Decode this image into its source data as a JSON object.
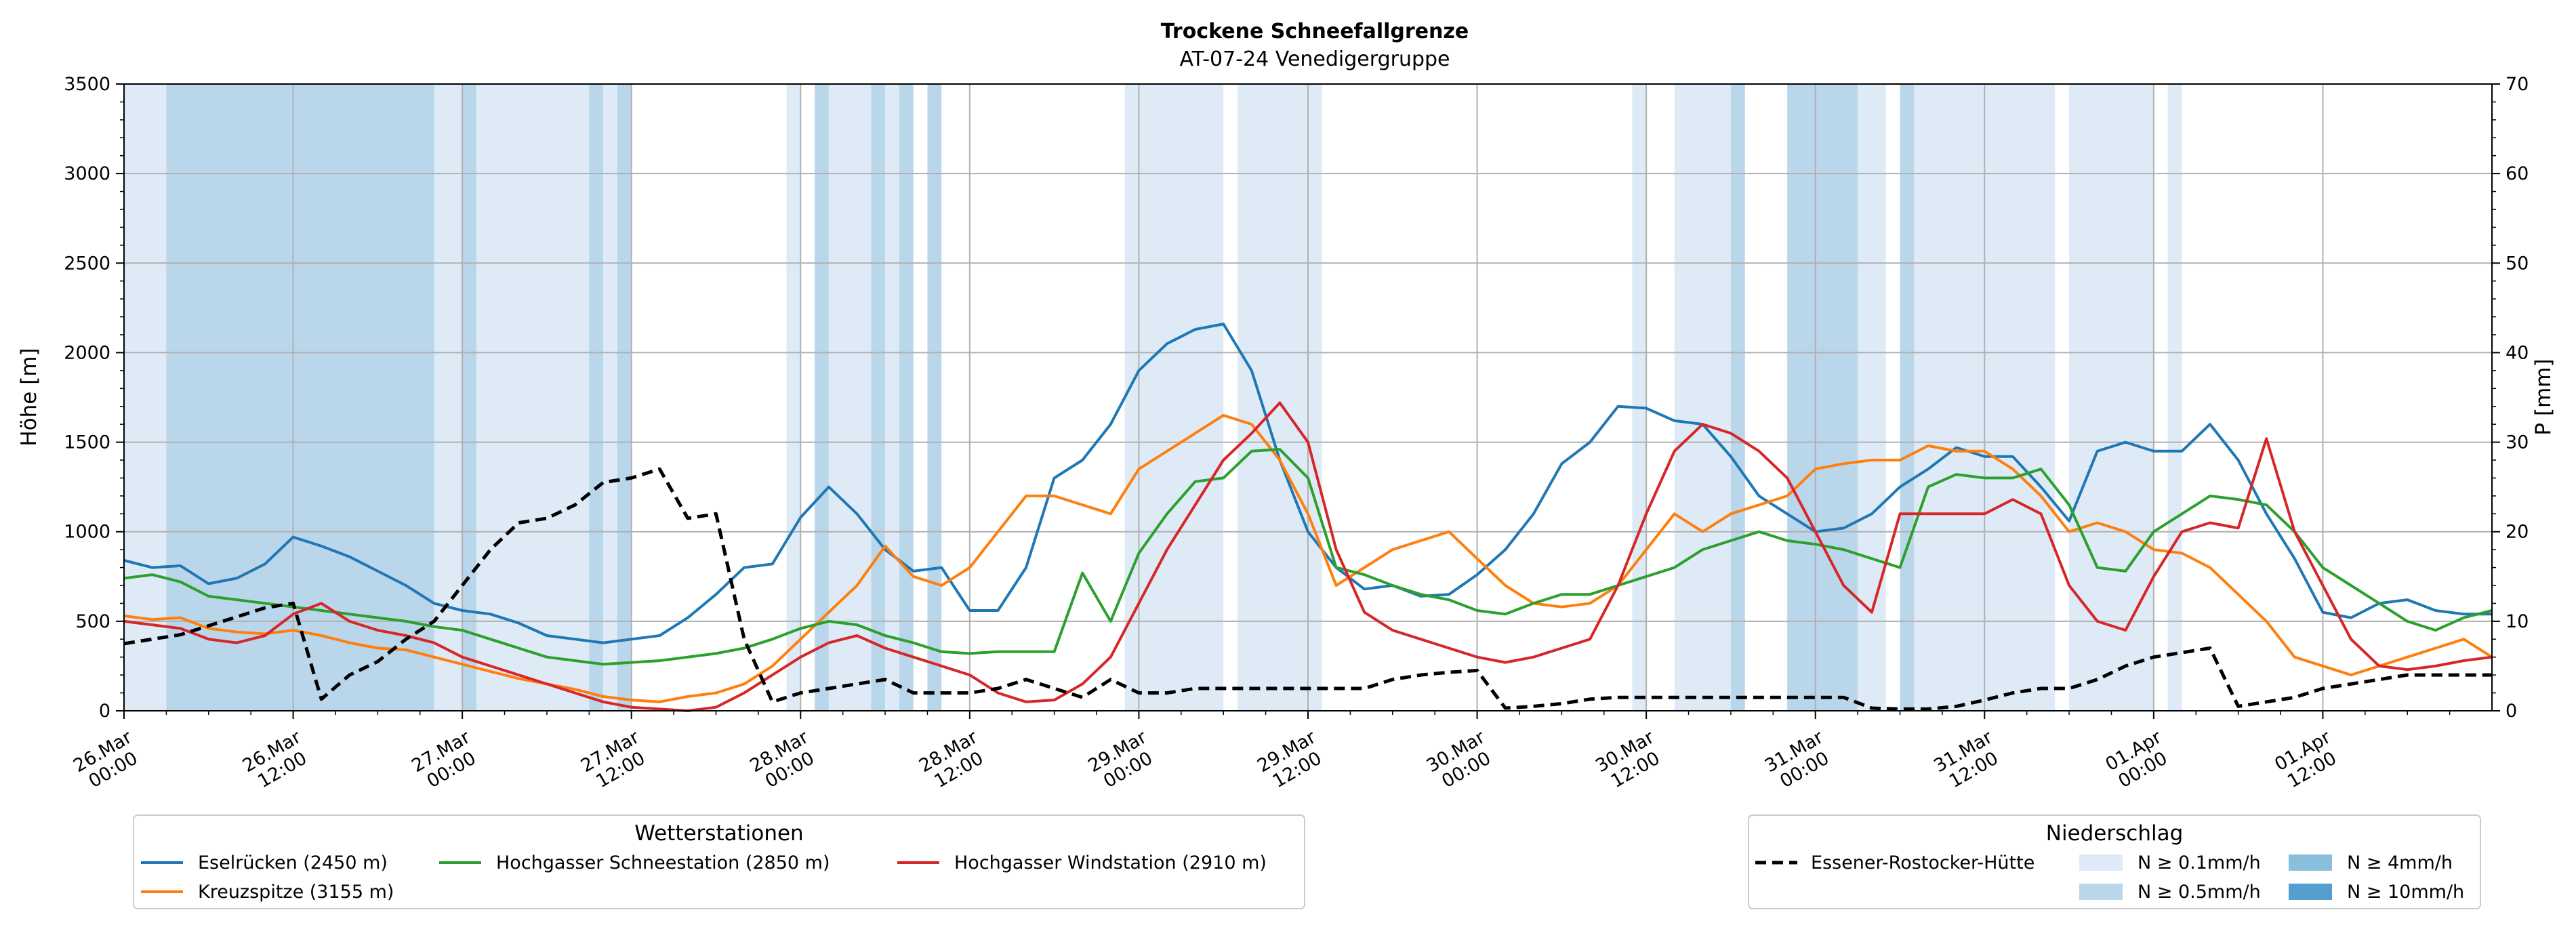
{
  "chart_data": {
    "type": "line",
    "title": "Trockene Schneefallgrenze",
    "subtitle": "AT-07-24 Venedigergruppe",
    "ylabel": "Höhe [m]",
    "ylabel_right": "P [mm]",
    "ylim": [
      0,
      3500
    ],
    "ylim_right": [
      0,
      70
    ],
    "yticks": [
      "0",
      "500",
      "1000",
      "1500",
      "2000",
      "2500",
      "3000",
      "3500"
    ],
    "yticks_right": [
      "0",
      "10",
      "20",
      "30",
      "40",
      "50",
      "60",
      "70"
    ],
    "x_range_hours": [
      0,
      168
    ],
    "xticks": [
      [
        "26.Mar",
        "00:00"
      ],
      [
        "26.Mar",
        "12:00"
      ],
      [
        "27.Mar",
        "00:00"
      ],
      [
        "27.Mar",
        "12:00"
      ],
      [
        "28.Mar",
        "00:00"
      ],
      [
        "28.Mar",
        "12:00"
      ],
      [
        "29.Mar",
        "00:00"
      ],
      [
        "29.Mar",
        "12:00"
      ],
      [
        "30.Mar",
        "00:00"
      ],
      [
        "30.Mar",
        "12:00"
      ],
      [
        "31.Mar",
        "00:00"
      ],
      [
        "31.Mar",
        "12:00"
      ],
      [
        "01.Apr",
        "00:00"
      ],
      [
        "01.Apr",
        "12:00"
      ]
    ],
    "grid": true,
    "stations_legend_title": "Wetterstationen",
    "precip_legend_title": "Niederschlag",
    "series": [
      {
        "name": "Eselrücken (2450 m)",
        "color": "#1f77b4",
        "x": [
          0,
          2,
          4,
          6,
          8,
          10,
          12,
          14,
          16,
          18,
          20,
          22,
          24,
          26,
          28,
          30,
          32,
          34,
          36,
          38,
          40,
          42,
          44,
          46,
          48,
          50,
          52,
          54,
          56,
          58,
          60,
          62,
          64,
          66,
          68,
          70,
          72,
          74,
          76,
          78,
          80,
          82,
          84,
          86,
          88,
          90,
          92,
          94,
          96,
          98,
          100,
          102,
          104,
          106,
          108,
          110,
          112,
          114,
          116,
          118,
          120,
          122,
          124,
          126,
          128,
          130,
          132,
          134,
          136,
          138,
          140,
          142,
          144,
          146,
          148,
          150,
          152,
          154,
          156,
          158,
          160,
          162,
          164,
          166,
          168
        ],
        "values": [
          840,
          800,
          810,
          710,
          740,
          820,
          970,
          920,
          860,
          780,
          700,
          600,
          560,
          540,
          490,
          420,
          400,
          380,
          400,
          420,
          520,
          650,
          800,
          820,
          1080,
          1250,
          1100,
          900,
          780,
          800,
          560,
          560,
          800,
          1300,
          1400,
          1600,
          1900,
          2050,
          2130,
          2160,
          1900,
          1400,
          1000,
          800,
          680,
          700,
          640,
          650,
          760,
          900,
          1100,
          1380,
          1500,
          1700,
          1690,
          1620,
          1600,
          1420,
          1200,
          1100,
          1000,
          1020,
          1100,
          1250,
          1350,
          1470,
          1420,
          1420,
          1250,
          1060,
          1450,
          1500,
          1450,
          1450,
          1600,
          1400,
          1100,
          850,
          550,
          520,
          600,
          620,
          560,
          540,
          540
        ]
      },
      {
        "name": "Kreuzspitze (3155 m)",
        "color": "#ff7f0e",
        "x": [
          0,
          2,
          4,
          6,
          8,
          10,
          12,
          14,
          16,
          18,
          20,
          22,
          24,
          26,
          28,
          30,
          32,
          34,
          36,
          38,
          40,
          42,
          44,
          46,
          48,
          50,
          52,
          54,
          56,
          58,
          60,
          62,
          64,
          66,
          68,
          70,
          72,
          74,
          76,
          78,
          80,
          82,
          84,
          86,
          88,
          90,
          92,
          94,
          96,
          98,
          100,
          102,
          104,
          106,
          108,
          110,
          112,
          114,
          116,
          118,
          120,
          122,
          124,
          126,
          128,
          130,
          132,
          134,
          136,
          138,
          140,
          142,
          144,
          146,
          148,
          150,
          152,
          154,
          156,
          158,
          160,
          162,
          164,
          166,
          168
        ],
        "values": [
          530,
          510,
          520,
          460,
          440,
          430,
          450,
          420,
          380,
          350,
          340,
          300,
          260,
          220,
          180,
          150,
          120,
          80,
          60,
          50,
          80,
          100,
          150,
          250,
          400,
          550,
          700,
          920,
          750,
          700,
          800,
          1000,
          1200,
          1200,
          1150,
          1100,
          1350,
          1450,
          1550,
          1650,
          1600,
          1400,
          1100,
          700,
          800,
          900,
          950,
          1000,
          850,
          700,
          600,
          580,
          600,
          700,
          900,
          1100,
          1000,
          1100,
          1150,
          1200,
          1350,
          1380,
          1400,
          1400,
          1480,
          1450,
          1450,
          1350,
          1200,
          1000,
          1050,
          1000,
          900,
          880,
          800,
          650,
          500,
          300,
          250,
          200,
          250,
          300,
          350,
          400,
          300
        ]
      },
      {
        "name": "Hochgasser Schneestation (2850 m)",
        "color": "#2ca02c",
        "x": [
          0,
          2,
          4,
          6,
          8,
          10,
          12,
          14,
          16,
          18,
          20,
          22,
          24,
          26,
          28,
          30,
          32,
          34,
          36,
          38,
          40,
          42,
          44,
          46,
          48,
          50,
          52,
          54,
          56,
          58,
          60,
          62,
          64,
          66,
          68,
          70,
          72,
          74,
          76,
          78,
          80,
          82,
          84,
          86,
          88,
          90,
          92,
          94,
          96,
          98,
          100,
          102,
          104,
          106,
          108,
          110,
          112,
          114,
          116,
          118,
          120,
          122,
          124,
          126,
          128,
          130,
          132,
          134,
          136,
          138,
          140,
          142,
          144,
          146,
          148,
          150,
          152,
          154,
          156,
          158,
          160,
          162,
          164,
          166,
          168
        ],
        "values": [
          740,
          760,
          720,
          640,
          620,
          600,
          580,
          560,
          540,
          520,
          500,
          470,
          450,
          400,
          350,
          300,
          280,
          260,
          270,
          280,
          300,
          320,
          350,
          400,
          460,
          500,
          480,
          420,
          380,
          330,
          320,
          330,
          330,
          330,
          770,
          500,
          880,
          1100,
          1280,
          1300,
          1450,
          1460,
          1300,
          800,
          760,
          700,
          650,
          620,
          560,
          540,
          600,
          650,
          650,
          700,
          750,
          800,
          900,
          950,
          1000,
          950,
          930,
          900,
          850,
          800,
          1250,
          1320,
          1300,
          1300,
          1350,
          1150,
          800,
          780,
          1000,
          1100,
          1200,
          1180,
          1150,
          1000,
          800,
          700,
          600,
          500,
          450,
          520,
          560
        ]
      },
      {
        "name": "Hochgasser Windstation (2910 m)",
        "color": "#d62728",
        "x": [
          0,
          2,
          4,
          6,
          8,
          10,
          12,
          14,
          16,
          18,
          20,
          22,
          24,
          26,
          28,
          30,
          32,
          34,
          36,
          38,
          40,
          42,
          44,
          46,
          48,
          50,
          52,
          54,
          56,
          58,
          60,
          62,
          64,
          66,
          68,
          70,
          72,
          74,
          76,
          78,
          80,
          82,
          84,
          86,
          88,
          90,
          92,
          94,
          96,
          98,
          100,
          102,
          104,
          106,
          108,
          110,
          112,
          114,
          116,
          118,
          120,
          122,
          124,
          126,
          128,
          130,
          132,
          134,
          136,
          138,
          140,
          142,
          144,
          146,
          148,
          150,
          152,
          154,
          156,
          158,
          160,
          162,
          164,
          166,
          168
        ],
        "values": [
          500,
          480,
          460,
          400,
          380,
          420,
          540,
          600,
          500,
          450,
          420,
          380,
          300,
          250,
          200,
          150,
          100,
          50,
          20,
          10,
          0,
          20,
          100,
          200,
          300,
          380,
          420,
          350,
          300,
          250,
          200,
          100,
          50,
          60,
          150,
          300,
          600,
          900,
          1150,
          1400,
          1550,
          1720,
          1500,
          900,
          550,
          450,
          400,
          350,
          300,
          270,
          300,
          350,
          400,
          700,
          1100,
          1450,
          1600,
          1550,
          1450,
          1300,
          1000,
          700,
          550,
          1100,
          1100,
          1100,
          1100,
          1180,
          1100,
          700,
          500,
          450,
          750,
          1000,
          1050,
          1020,
          1520,
          1000,
          700,
          400,
          250,
          230,
          250,
          280,
          300
        ]
      },
      {
        "name": "Essener-Rostocker-Hütte",
        "axis": "right",
        "color": "#000000",
        "dashed": true,
        "x": [
          0,
          4,
          8,
          10,
          12,
          14,
          16,
          18,
          20,
          22,
          24,
          26,
          28,
          30,
          32,
          34,
          36,
          38,
          40,
          42,
          44,
          46,
          48,
          50,
          52,
          54,
          56,
          58,
          60,
          62,
          64,
          66,
          68,
          70,
          72,
          74,
          76,
          78,
          80,
          82,
          84,
          86,
          88,
          90,
          92,
          94,
          96,
          98,
          100,
          102,
          104,
          106,
          108,
          110,
          112,
          114,
          116,
          118,
          120,
          122,
          124,
          126,
          128,
          130,
          132,
          134,
          136,
          138,
          140,
          142,
          144,
          146,
          148,
          150,
          152,
          154,
          156,
          158,
          160,
          162,
          164,
          166,
          168
        ],
        "values": [
          7.5,
          8.5,
          10.5,
          11.5,
          12,
          1.3,
          4,
          5.5,
          8,
          10,
          14,
          18,
          21,
          21.5,
          23,
          25.5,
          26,
          27,
          21.5,
          22,
          8,
          1,
          2,
          2.5,
          3,
          3.5,
          2,
          2,
          2,
          2.5,
          3.5,
          2.5,
          1.5,
          3.5,
          2,
          2,
          2.5,
          2.5,
          2.5,
          2.5,
          2.5,
          2.5,
          2.5,
          3.5,
          4,
          4.3,
          4.5,
          0.3,
          0.5,
          0.8,
          1.3,
          1.5,
          1.5,
          1.5,
          1.5,
          1.5,
          1.5,
          1.5,
          1.5,
          1.5,
          0.3,
          0.2,
          0.2,
          0.5,
          1.2,
          2,
          2.5,
          2.5,
          3.5,
          5,
          6,
          6.5,
          7,
          0.5,
          1,
          1.5,
          2.5,
          3,
          3.5,
          4,
          4,
          4,
          4
        ]
      }
    ],
    "precipitation": {
      "legend_items": [
        {
          "label": "N ≥ 0.1mm/h",
          "color": "#deebf7"
        },
        {
          "label": "N ≥ 0.5mm/h",
          "color": "#bad6eb"
        },
        {
          "label": "N ≥ 4mm/h",
          "color": "#89bedc"
        },
        {
          "label": "N ≥ 10mm/h",
          "color": "#539ecd"
        }
      ],
      "bands": [
        {
          "from": 0,
          "to": 3,
          "level": 0
        },
        {
          "from": 3,
          "to": 22,
          "level": 1
        },
        {
          "from": 22,
          "to": 24,
          "level": 0
        },
        {
          "from": 24,
          "to": 25,
          "level": 1
        },
        {
          "from": 25,
          "to": 33,
          "level": 0
        },
        {
          "from": 33,
          "to": 34,
          "level": 1
        },
        {
          "from": 34,
          "to": 35,
          "level": 0
        },
        {
          "from": 35,
          "to": 36,
          "level": 1
        },
        {
          "from": 47,
          "to": 48,
          "level": 0
        },
        {
          "from": 49,
          "to": 50,
          "level": 1
        },
        {
          "from": 50,
          "to": 53,
          "level": 0
        },
        {
          "from": 53,
          "to": 54,
          "level": 1
        },
        {
          "from": 54,
          "to": 55,
          "level": 0
        },
        {
          "from": 55,
          "to": 56,
          "level": 1
        },
        {
          "from": 57,
          "to": 58,
          "level": 1
        },
        {
          "from": 71,
          "to": 78,
          "level": 0
        },
        {
          "from": 79,
          "to": 85,
          "level": 0
        },
        {
          "from": 107,
          "to": 108,
          "level": 0
        },
        {
          "from": 110,
          "to": 115,
          "level": 0
        },
        {
          "from": 114,
          "to": 115,
          "level": 1
        },
        {
          "from": 118,
          "to": 123,
          "level": 1
        },
        {
          "from": 123,
          "to": 125,
          "level": 0
        },
        {
          "from": 126,
          "to": 127,
          "level": 1
        },
        {
          "from": 127,
          "to": 137,
          "level": 0
        },
        {
          "from": 138,
          "to": 144,
          "level": 0
        },
        {
          "from": 145,
          "to": 146,
          "level": 0
        }
      ]
    }
  }
}
